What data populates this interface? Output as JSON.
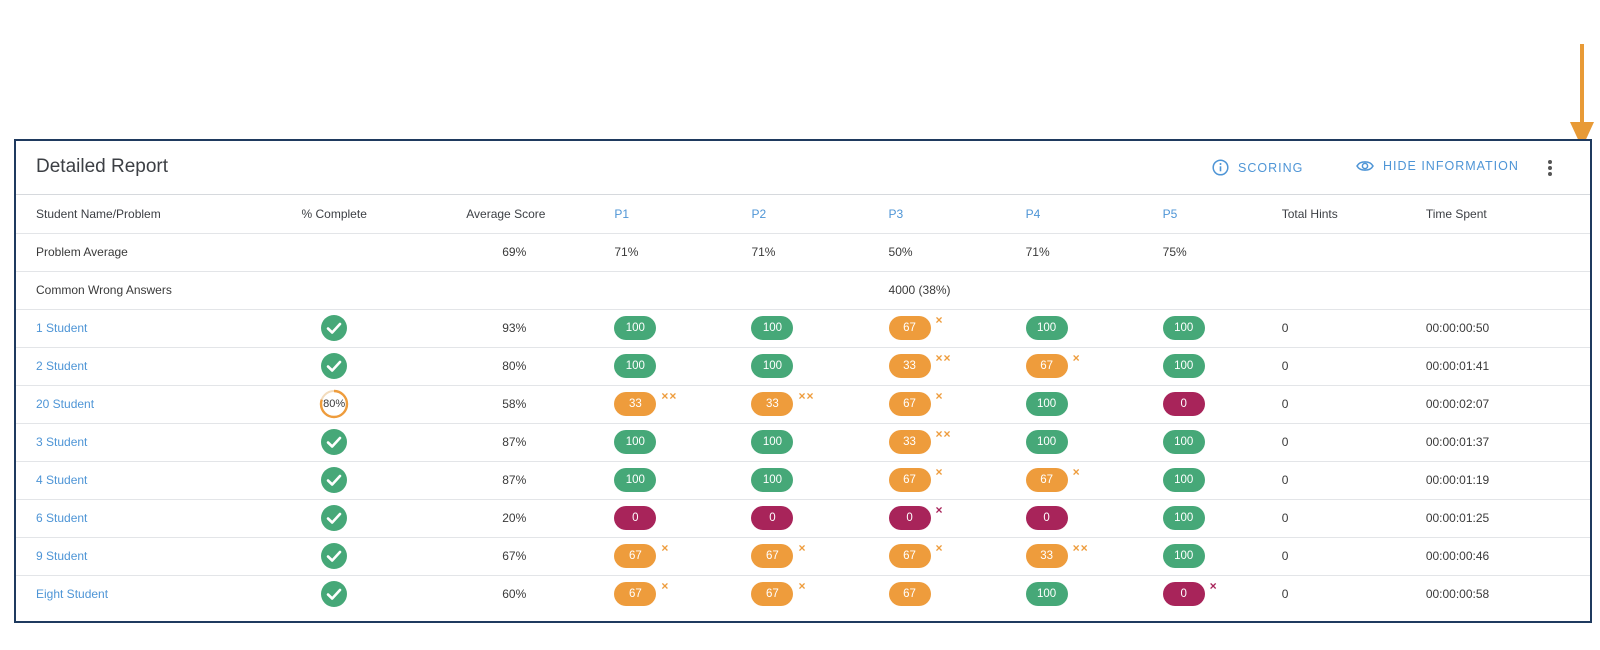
{
  "report": {
    "title": "Detailed Report",
    "scoring_label": "SCORING",
    "hide_label": "HIDE INFORMATION"
  },
  "columns": {
    "name": "Student Name/Problem",
    "complete": "% Complete",
    "avg": "Average Score",
    "problems": [
      "P1",
      "P2",
      "P3",
      "P4",
      "P5"
    ],
    "hints": "Total Hints",
    "time": "Time Spent"
  },
  "problem_average": {
    "label": "Problem Average",
    "avg": "69%",
    "values": [
      "71%",
      "71%",
      "50%",
      "71%",
      "75%"
    ]
  },
  "common_wrong": {
    "label": "Common Wrong Answers",
    "values": [
      "",
      "",
      "4000 (38%)",
      "",
      ""
    ]
  },
  "students": [
    {
      "name": "1 Student",
      "complete": "check",
      "avg": "93%",
      "scores": [
        {
          "v": "100",
          "c": "green",
          "x": ""
        },
        {
          "v": "100",
          "c": "green",
          "x": ""
        },
        {
          "v": "67",
          "c": "orange",
          "x": "×"
        },
        {
          "v": "100",
          "c": "green",
          "x": ""
        },
        {
          "v": "100",
          "c": "green",
          "x": ""
        }
      ],
      "hints": "0",
      "time": "00:00:00:50"
    },
    {
      "name": "2 Student",
      "complete": "check",
      "avg": "80%",
      "scores": [
        {
          "v": "100",
          "c": "green",
          "x": ""
        },
        {
          "v": "100",
          "c": "green",
          "x": ""
        },
        {
          "v": "33",
          "c": "orange",
          "x": "××"
        },
        {
          "v": "67",
          "c": "orange",
          "x": "×"
        },
        {
          "v": "100",
          "c": "green",
          "x": ""
        }
      ],
      "hints": "0",
      "time": "00:00:01:41"
    },
    {
      "name": "20 Student",
      "complete": "80%",
      "progress": 0.8,
      "avg": "58%",
      "scores": [
        {
          "v": "33",
          "c": "orange",
          "x": "××"
        },
        {
          "v": "33",
          "c": "orange",
          "x": "××"
        },
        {
          "v": "67",
          "c": "orange",
          "x": "×"
        },
        {
          "v": "100",
          "c": "green",
          "x": ""
        },
        {
          "v": "0",
          "c": "red",
          "x": ""
        }
      ],
      "hints": "0",
      "time": "00:00:02:07"
    },
    {
      "name": "3 Student",
      "complete": "check",
      "avg": "87%",
      "scores": [
        {
          "v": "100",
          "c": "green",
          "x": ""
        },
        {
          "v": "100",
          "c": "green",
          "x": ""
        },
        {
          "v": "33",
          "c": "orange",
          "x": "××"
        },
        {
          "v": "100",
          "c": "green",
          "x": ""
        },
        {
          "v": "100",
          "c": "green",
          "x": ""
        }
      ],
      "hints": "0",
      "time": "00:00:01:37"
    },
    {
      "name": "4 Student",
      "complete": "check",
      "avg": "87%",
      "scores": [
        {
          "v": "100",
          "c": "green",
          "x": ""
        },
        {
          "v": "100",
          "c": "green",
          "x": ""
        },
        {
          "v": "67",
          "c": "orange",
          "x": "×"
        },
        {
          "v": "67",
          "c": "orange",
          "x": "×"
        },
        {
          "v": "100",
          "c": "green",
          "x": ""
        }
      ],
      "hints": "0",
      "time": "00:00:01:19"
    },
    {
      "name": "6 Student",
      "complete": "check",
      "avg": "20%",
      "scores": [
        {
          "v": "0",
          "c": "red",
          "x": ""
        },
        {
          "v": "0",
          "c": "red",
          "x": ""
        },
        {
          "v": "0",
          "c": "red",
          "x": "×"
        },
        {
          "v": "0",
          "c": "red",
          "x": ""
        },
        {
          "v": "100",
          "c": "green",
          "x": ""
        }
      ],
      "hints": "0",
      "time": "00:00:01:25"
    },
    {
      "name": "9 Student",
      "complete": "check",
      "avg": "67%",
      "scores": [
        {
          "v": "67",
          "c": "orange",
          "x": "×"
        },
        {
          "v": "67",
          "c": "orange",
          "x": "×"
        },
        {
          "v": "67",
          "c": "orange",
          "x": "×"
        },
        {
          "v": "33",
          "c": "orange",
          "x": "××"
        },
        {
          "v": "100",
          "c": "green",
          "x": ""
        }
      ],
      "hints": "0",
      "time": "00:00:00:46"
    },
    {
      "name": "Eight Student",
      "complete": "check",
      "avg": "60%",
      "scores": [
        {
          "v": "67",
          "c": "orange",
          "x": "×"
        },
        {
          "v": "67",
          "c": "orange",
          "x": "×"
        },
        {
          "v": "67",
          "c": "orange",
          "x": ""
        },
        {
          "v": "100",
          "c": "green",
          "x": ""
        },
        {
          "v": "0",
          "c": "red",
          "x": "×"
        }
      ],
      "hints": "0",
      "time": "00:00:00:58"
    }
  ],
  "colors": {
    "green": "#46a878",
    "orange": "#ee9c3c",
    "red": "#a8245a",
    "link": "#4e95d6",
    "frame": "#1f3a5f",
    "arrow": "#E89A36"
  },
  "icons": {
    "scoring": "info-icon",
    "hide": "eye-icon",
    "more": "more-vertical-icon",
    "complete": "check-circle-icon",
    "annotation": "arrow-down-icon"
  }
}
